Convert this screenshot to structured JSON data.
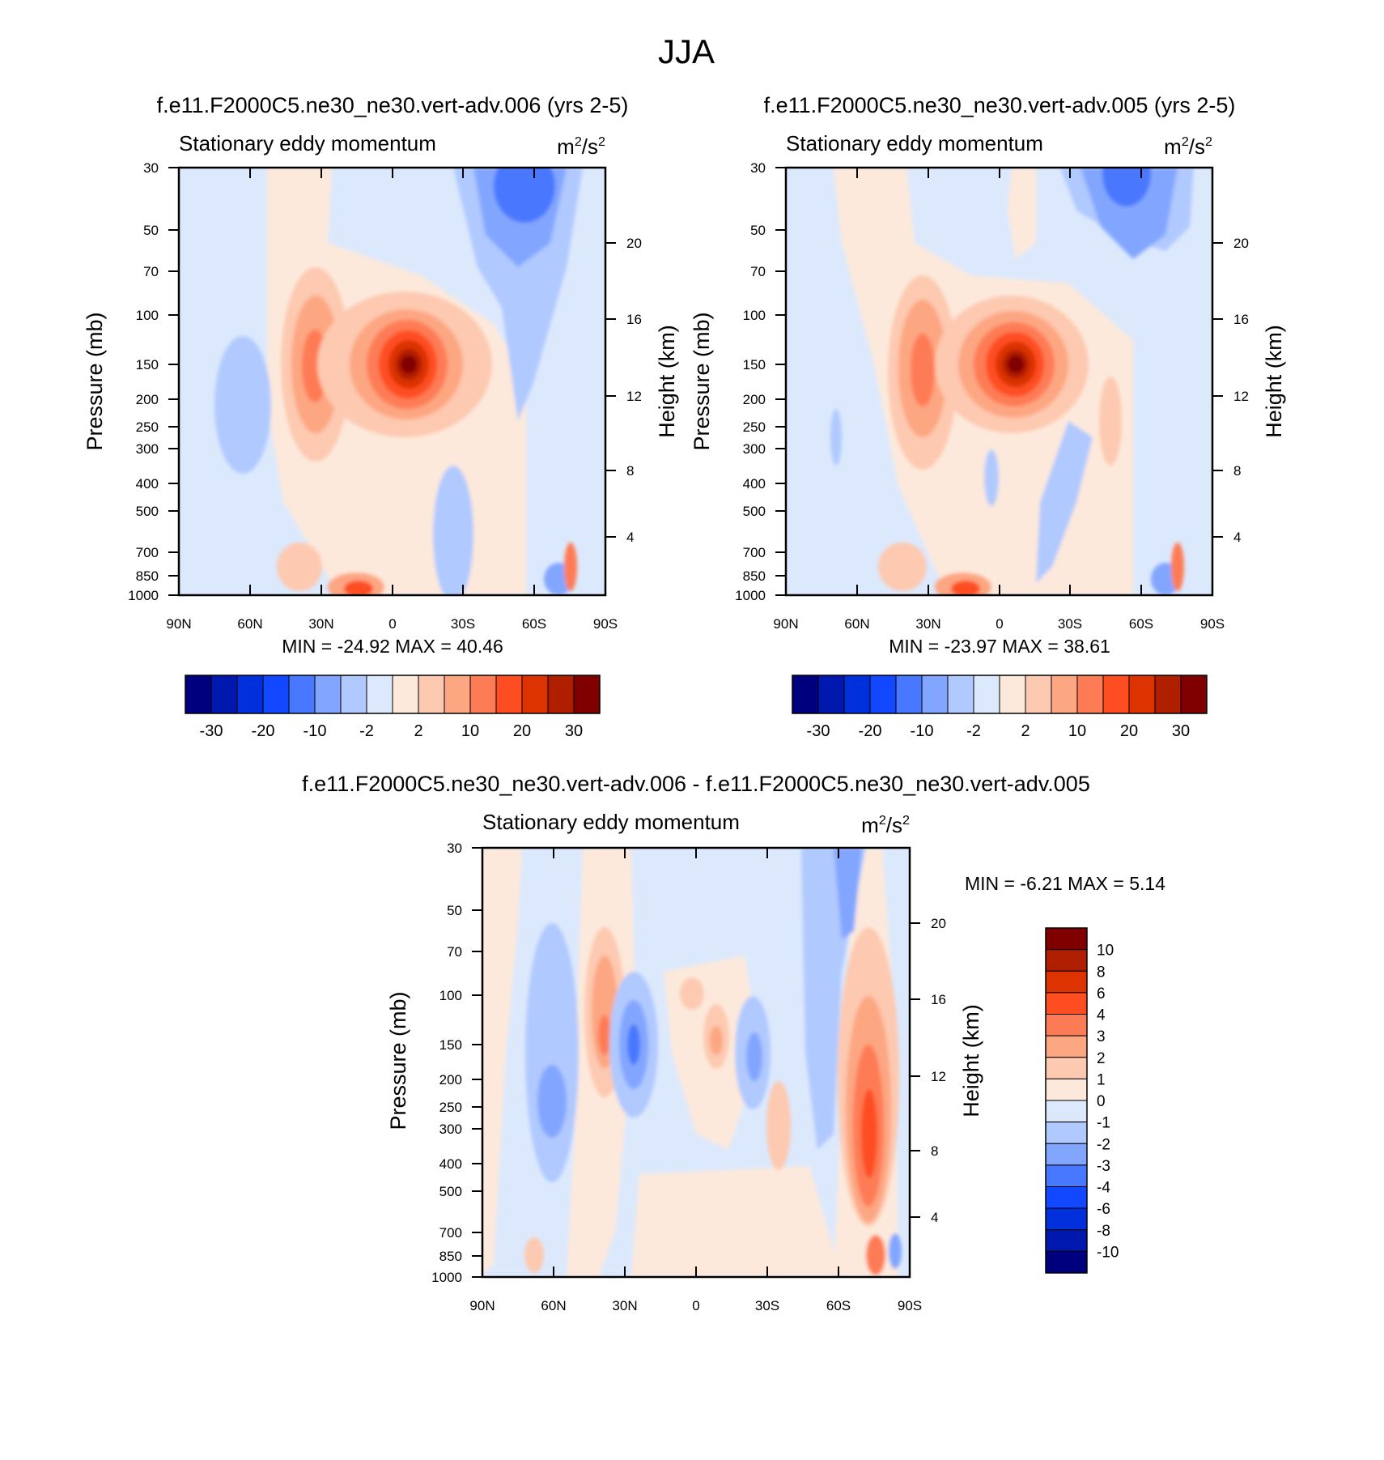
{
  "figure_title": "JJA",
  "colors": {
    "model_scale": [
      "#00007f",
      "#0018ae",
      "#0030dc",
      "#1248ff",
      "#4878ff",
      "#82a6ff",
      "#b0c9ff",
      "#dce9fd",
      "#fde9db",
      "#fdc9b0",
      "#fda682",
      "#fe7c55",
      "#fe4d20",
      "#dc3300",
      "#b01e00",
      "#800000"
    ],
    "diff_scale": [
      "#00007f",
      "#0018ae",
      "#0030dc",
      "#1248ff",
      "#4878ff",
      "#82a6ff",
      "#b0c9ff",
      "#dce9fd",
      "#fde9db",
      "#fdc9b0",
      "#fda682",
      "#fe7c55",
      "#fe4d20",
      "#dc3300",
      "#b01e00",
      "#800000"
    ]
  },
  "panels": {
    "case_a": {
      "case_title": "f.e11.F2000C5.ne30_ne30.vert-adv.006 (yrs 2-5)",
      "left_string": "Stationary eddy momentum",
      "units_base": "m",
      "units_mid": "/s",
      "units_exp": "2",
      "stats": "MIN = -24.92  MAX =  40.46"
    },
    "case_b": {
      "case_title": "f.e11.F2000C5.ne30_ne30.vert-adv.005 (yrs 2-5)",
      "left_string": "Stationary eddy momentum",
      "units_base": "m",
      "units_mid": "/s",
      "units_exp": "2",
      "stats": "MIN = -23.97  MAX =  38.61"
    },
    "difference": {
      "case_title": "f.e11.F2000C5.ne30_ne30.vert-adv.006 - f.e11.F2000C5.ne30_ne30.vert-adv.005",
      "left_string": "Stationary eddy momentum",
      "units_base": "m",
      "units_mid": "/s",
      "units_exp": "2",
      "stats": "MIN =  -6.21  MAX =   5.14"
    }
  },
  "axes": {
    "ylabel_left": "Pressure (mb)",
    "ylabel_right": "Height (km)",
    "pressure_ticks": [
      "30",
      "50",
      "70",
      "100",
      "150",
      "200",
      "250",
      "300",
      "400",
      "500",
      "700",
      "850",
      "1000"
    ],
    "height_ticks": [
      "20",
      "16",
      "12",
      "8",
      "4"
    ],
    "lat_ticks": [
      "90N",
      "60N",
      "30N",
      "0",
      "30S",
      "60S",
      "90S"
    ]
  },
  "colorbars": {
    "model_labels": [
      "-30",
      "-20",
      "-10",
      "-2",
      "2",
      "10",
      "20",
      "30"
    ],
    "diff_labels": [
      "10",
      "8",
      "6",
      "4",
      "3",
      "2",
      "1",
      "0",
      "-1",
      "-2",
      "-3",
      "-4",
      "-6",
      "-8",
      "-10"
    ]
  },
  "chart_data": [
    {
      "type": "heatmap",
      "title": "f.e11.F2000C5.ne30_ne30.vert-adv.006 (yrs 2-5)",
      "subtitle": "Stationary eddy momentum",
      "units": "m^2/s^2",
      "xlabel": "",
      "ylabel": "Pressure (mb)",
      "ylabel_right": "Height (km)",
      "xlim": [
        90,
        -90
      ],
      "ylim": [
        1000,
        30
      ],
      "levels": [
        -30,
        -25,
        -20,
        -15,
        -10,
        -5,
        -2,
        0,
        2,
        5,
        10,
        15,
        20,
        25,
        30
      ],
      "min": -24.92,
      "max": 40.46,
      "features": [
        {
          "lat": 4,
          "p": 150,
          "value": 40,
          "label": "max"
        },
        {
          "lat": 30,
          "p": 150,
          "value": 12
        },
        {
          "lat": -55,
          "p": 30,
          "value": -15
        },
        {
          "lat": 17,
          "p": 1000,
          "value": 25
        }
      ]
    },
    {
      "type": "heatmap",
      "title": "f.e11.F2000C5.ne30_ne30.vert-adv.005 (yrs 2-5)",
      "subtitle": "Stationary eddy momentum",
      "units": "m^2/s^2",
      "xlabel": "",
      "ylabel": "Pressure (mb)",
      "ylabel_right": "Height (km)",
      "xlim": [
        90,
        -90
      ],
      "ylim": [
        1000,
        30
      ],
      "levels": [
        -30,
        -25,
        -20,
        -15,
        -10,
        -5,
        -2,
        0,
        2,
        5,
        10,
        15,
        20,
        25,
        30
      ],
      "min": -23.97,
      "max": 38.61,
      "features": [
        {
          "lat": 4,
          "p": 150,
          "value": 38,
          "label": "max"
        },
        {
          "lat": 30,
          "p": 150,
          "value": 10
        },
        {
          "lat": -52,
          "p": 30,
          "value": -12
        },
        {
          "lat": 17,
          "p": 1000,
          "value": 23
        }
      ]
    },
    {
      "type": "heatmap",
      "title": "f.e11.F2000C5.ne30_ne30.vert-adv.006 - f.e11.F2000C5.ne30_ne30.vert-adv.005",
      "subtitle": "Stationary eddy momentum",
      "units": "m^2/s^2",
      "xlabel": "",
      "ylabel": "Pressure (mb)",
      "ylabel_right": "Height (km)",
      "xlim": [
        90,
        -90
      ],
      "ylim": [
        1000,
        30
      ],
      "levels": [
        -10,
        -8,
        -6,
        -4,
        -3,
        -2,
        -1,
        0,
        1,
        2,
        3,
        4,
        6,
        8,
        10
      ],
      "min": -6.21,
      "max": 5.14,
      "features": [
        {
          "lat": -72,
          "p": 250,
          "value": 5,
          "label": "max"
        },
        {
          "lat": 25,
          "p": 150,
          "value": -6,
          "label": "min"
        },
        {
          "lat": 37,
          "p": 150,
          "value": 4
        },
        {
          "lat": 62,
          "p": 250,
          "value": -3
        }
      ]
    }
  ]
}
